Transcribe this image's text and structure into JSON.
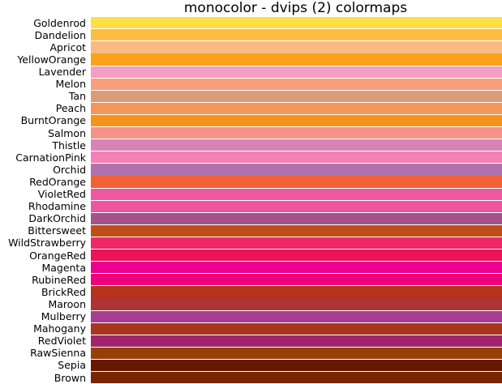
{
  "title": "monocolor - dvips (2) colormaps",
  "colormaps": [
    {
      "name": "Goldenrod",
      "color": "#FFDF42"
    },
    {
      "name": "Dandelion",
      "color": "#FDBC42"
    },
    {
      "name": "Apricot",
      "color": "#FBB982"
    },
    {
      "name": "YellowOrange",
      "color": "#FAA21A"
    },
    {
      "name": "Lavender",
      "color": "#F49EC4"
    },
    {
      "name": "Melon",
      "color": "#F89E7B"
    },
    {
      "name": "Tan",
      "color": "#DA9D76"
    },
    {
      "name": "Peach",
      "color": "#F7965A"
    },
    {
      "name": "BurntOrange",
      "color": "#F7921D"
    },
    {
      "name": "Salmon",
      "color": "#F69289"
    },
    {
      "name": "Thistle",
      "color": "#D883B7"
    },
    {
      "name": "CarnationPink",
      "color": "#F282B4"
    },
    {
      "name": "Orchid",
      "color": "#AF72B0"
    },
    {
      "name": "RedOrange",
      "color": "#F26035"
    },
    {
      "name": "VioletRed",
      "color": "#EF58A0"
    },
    {
      "name": "Rhodamine",
      "color": "#EF559F"
    },
    {
      "name": "DarkOrchid",
      "color": "#A4538A"
    },
    {
      "name": "Bittersweet",
      "color": "#C04F17"
    },
    {
      "name": "WildStrawberry",
      "color": "#EE2967"
    },
    {
      "name": "OrangeRed",
      "color": "#ED135A"
    },
    {
      "name": "Magenta",
      "color": "#EC008C"
    },
    {
      "name": "RubineRed",
      "color": "#ED017D"
    },
    {
      "name": "BrickRed",
      "color": "#B6321C"
    },
    {
      "name": "Maroon",
      "color": "#AF3235"
    },
    {
      "name": "Mulberry",
      "color": "#A93C93"
    },
    {
      "name": "Mahogany",
      "color": "#A9341F"
    },
    {
      "name": "RedViolet",
      "color": "#A1246B"
    },
    {
      "name": "RawSienna",
      "color": "#974006"
    },
    {
      "name": "Sepia",
      "color": "#671800"
    },
    {
      "name": "Brown",
      "color": "#792500"
    }
  ]
}
